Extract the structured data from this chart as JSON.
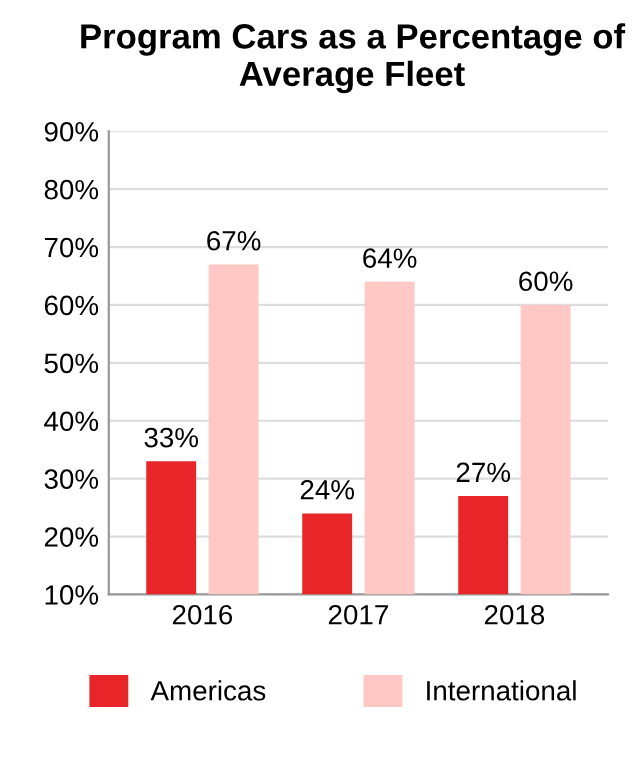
{
  "chart_data": {
    "type": "bar",
    "title": "Program Cars as a Percentage of Average Fleet",
    "categories": [
      "2016",
      "2017",
      "2018"
    ],
    "series": [
      {
        "name": "Americas",
        "color": "#e8262a",
        "values": [
          33,
          24,
          27
        ],
        "value_labels": [
          "33%",
          "24%",
          "27%"
        ]
      },
      {
        "name": "International",
        "color": "#ffc8c4",
        "values": [
          67,
          64,
          60
        ],
        "value_labels": [
          "67%",
          "64%",
          "60%"
        ]
      }
    ],
    "ylim": [
      10,
      90
    ],
    "yticks": [
      {
        "value": 10,
        "label": "10%"
      },
      {
        "value": 20,
        "label": "20%"
      },
      {
        "value": 30,
        "label": "30%"
      },
      {
        "value": 40,
        "label": "40%"
      },
      {
        "value": 50,
        "label": "50%"
      },
      {
        "value": 60,
        "label": "60%"
      },
      {
        "value": 70,
        "label": "70%"
      },
      {
        "value": 80,
        "label": "80%"
      },
      {
        "value": 90,
        "label": "90%"
      }
    ],
    "grid": "y",
    "legend": "bottom"
  }
}
